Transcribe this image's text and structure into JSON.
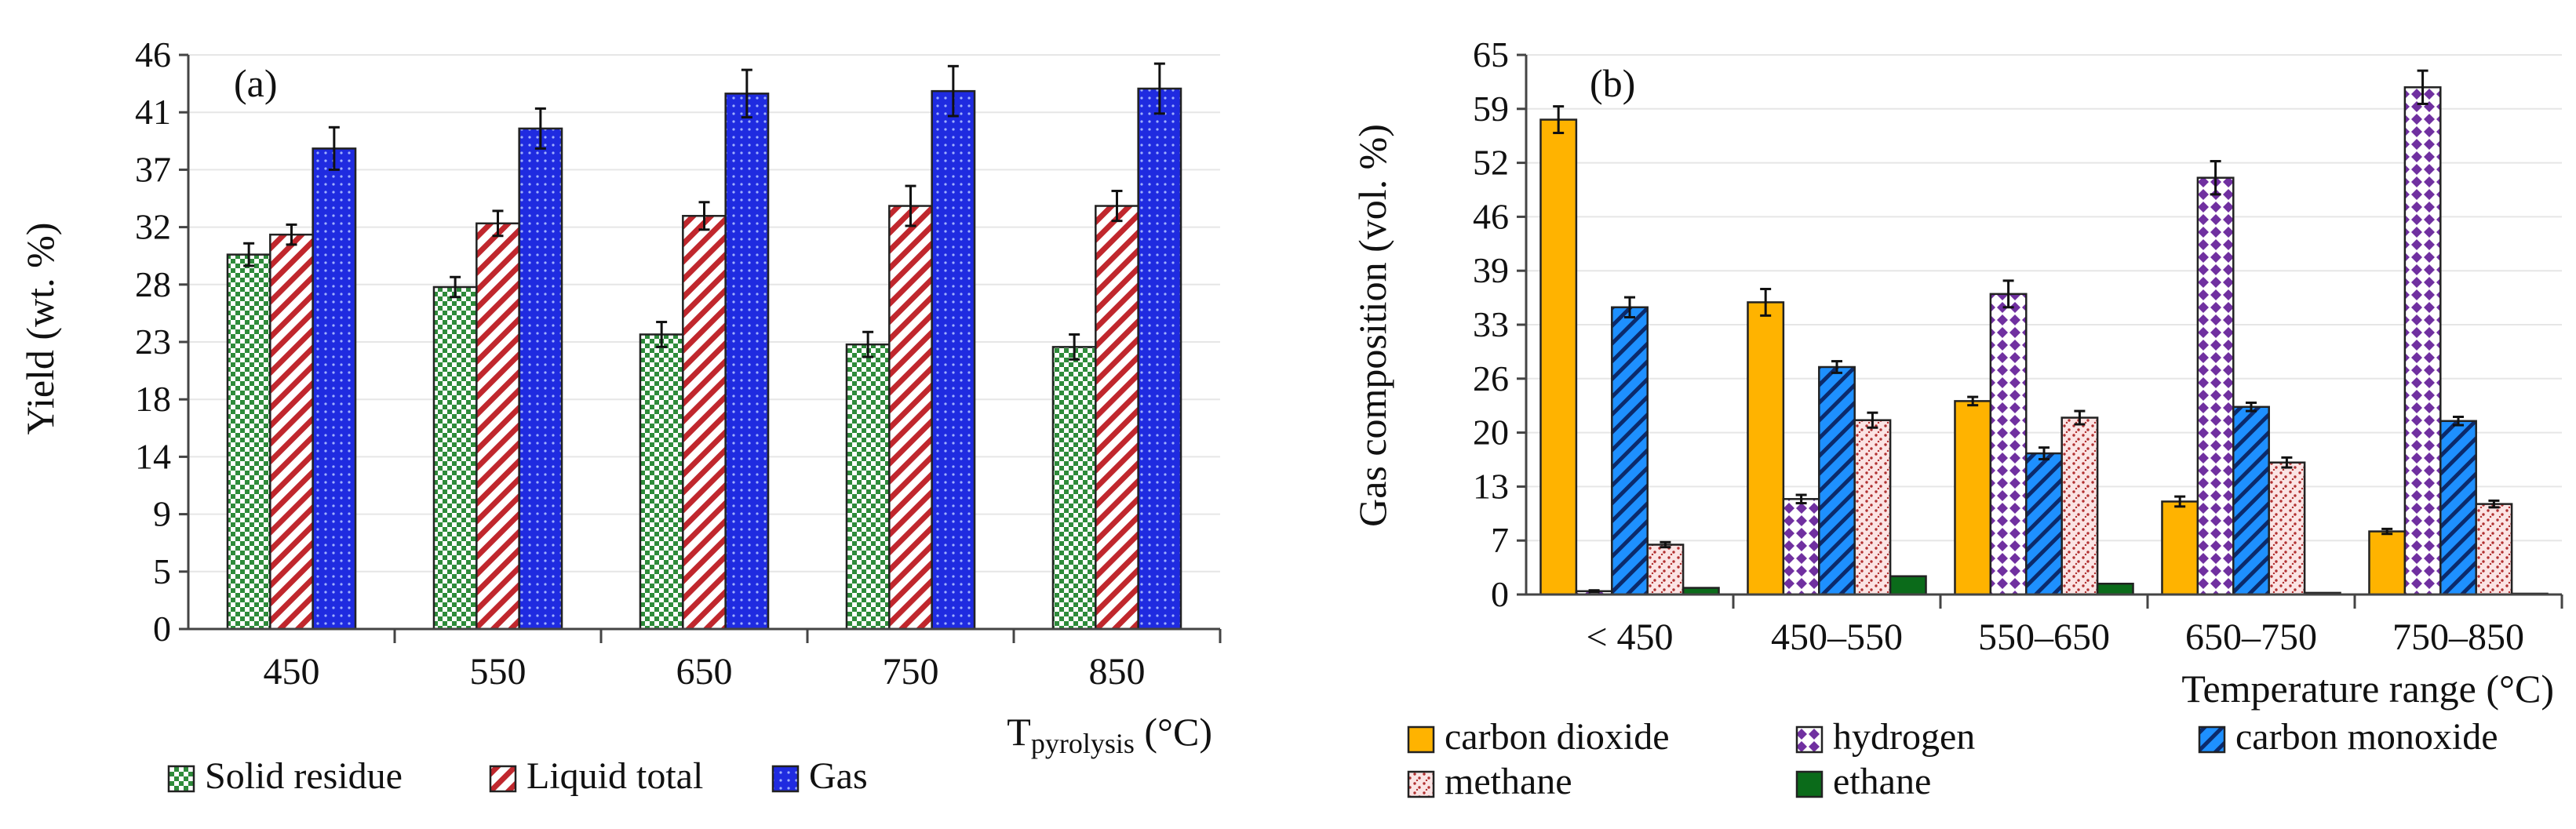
{
  "chart_data": [
    {
      "type": "bar",
      "panel_label": "(a)",
      "title": "",
      "ylabel": "Yield (wt. %)",
      "xlabel_main": "T",
      "xlabel_sub": "pyrolysis",
      "xlabel_unit": " (°C)",
      "ylim": [
        0,
        46
      ],
      "yticks": [
        "0",
        "5",
        "9",
        "14",
        "18",
        "23",
        "28",
        "32",
        "37",
        "41",
        "46"
      ],
      "categories": [
        "450",
        "550",
        "650",
        "750",
        "850"
      ],
      "grid": true,
      "legend_position": "bottom",
      "series": [
        {
          "name": "Solid residue",
          "color": "#2e8b3a",
          "pattern": "checker",
          "values": [
            30.0,
            27.4,
            23.6,
            22.8,
            22.6
          ],
          "errors": [
            0.9,
            0.8,
            1.0,
            1.0,
            1.0
          ]
        },
        {
          "name": "Liquid total",
          "color": "#c0272d",
          "pattern": "diag",
          "values": [
            31.6,
            32.5,
            33.1,
            33.9,
            33.9
          ],
          "errors": [
            0.8,
            1.0,
            1.1,
            1.6,
            1.2
          ]
        },
        {
          "name": "Gas",
          "color": "#1f2be0",
          "pattern": "dots",
          "values": [
            38.5,
            40.1,
            42.9,
            43.1,
            43.3
          ],
          "errors": [
            1.7,
            1.6,
            1.9,
            2.0,
            2.0
          ]
        }
      ]
    },
    {
      "type": "bar",
      "panel_label": "(b)",
      "title": "",
      "ylabel": "Gas composition (vol. %)",
      "xlabel": "Temperature range (°C)",
      "ylim": [
        0,
        65
      ],
      "yticks": [
        "0",
        "7",
        "13",
        "20",
        "26",
        "33",
        "39",
        "46",
        "52",
        "59",
        "65"
      ],
      "categories": [
        "< 450",
        "450–550",
        "550–650",
        "650–750",
        "750–850"
      ],
      "grid": true,
      "legend_position": "bottom",
      "series": [
        {
          "name": "carbon dioxide",
          "color": "#ffb300",
          "pattern": "solid",
          "values": [
            57.2,
            35.2,
            23.3,
            11.2,
            7.6
          ],
          "errors": [
            1.6,
            1.6,
            0.5,
            0.6,
            0.3
          ]
        },
        {
          "name": "hydrogen",
          "color": "#7030a0",
          "pattern": "diamond",
          "values": [
            0.4,
            11.5,
            36.2,
            50.2,
            61.1
          ],
          "errors": [
            0.1,
            0.5,
            1.6,
            2.0,
            2.0
          ]
        },
        {
          "name": "carbon monoxide",
          "color": "#1e90ff",
          "pattern": "diag",
          "values": [
            34.6,
            27.4,
            17.0,
            22.6,
            20.9
          ],
          "errors": [
            1.2,
            0.7,
            0.7,
            0.5,
            0.5
          ]
        },
        {
          "name": "methane",
          "color": "#b03030",
          "pattern": "speckle",
          "values": [
            6.0,
            21.0,
            21.3,
            15.9,
            10.9
          ],
          "errors": [
            0.3,
            0.9,
            0.8,
            0.6,
            0.4
          ]
        },
        {
          "name": "ethane",
          "color": "#0b6b1a",
          "pattern": "solid",
          "values": [
            0.8,
            2.2,
            1.3,
            0.2,
            0.1
          ],
          "errors": [
            0.0,
            0.0,
            0.0,
            0.0,
            0.0
          ]
        }
      ]
    }
  ]
}
